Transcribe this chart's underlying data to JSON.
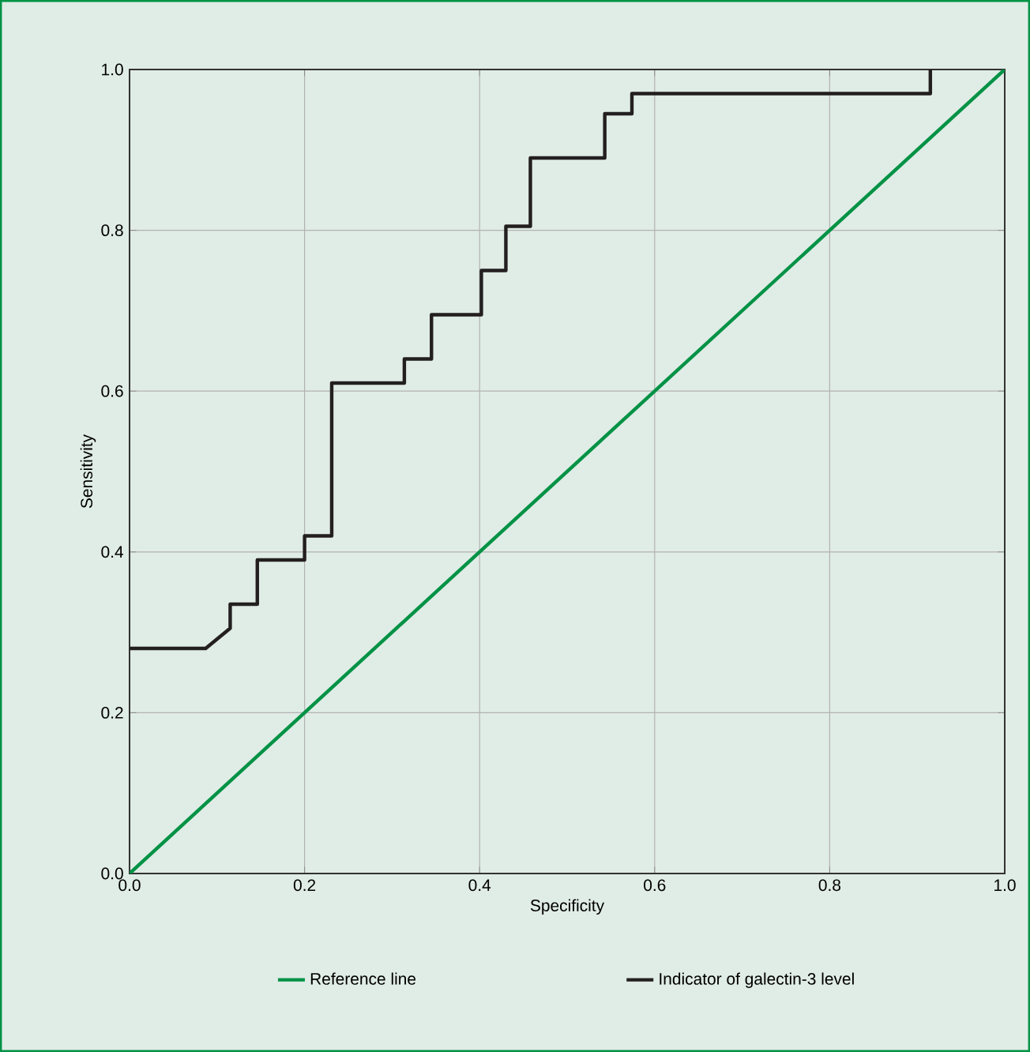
{
  "chart_data": {
    "type": "line",
    "xlabel": "Specificity",
    "ylabel": "Sensitivity",
    "xlim": [
      0,
      1
    ],
    "ylim": [
      0,
      1
    ],
    "xticks": [
      {
        "value": 0,
        "label": "0.0"
      },
      {
        "value": 0.2,
        "label": "0.2"
      },
      {
        "value": 0.4,
        "label": "0.4"
      },
      {
        "value": 0.6,
        "label": "0.6"
      },
      {
        "value": 0.8,
        "label": "0.8"
      },
      {
        "value": 1,
        "label": "1.0"
      }
    ],
    "yticks": [
      {
        "value": 0,
        "label": "0.0"
      },
      {
        "value": 0.2,
        "label": "0.2"
      },
      {
        "value": 0.4,
        "label": "0.4"
      },
      {
        "value": 0.6,
        "label": "0.6"
      },
      {
        "value": 0.8,
        "label": "0.8"
      },
      {
        "value": 1,
        "label": "1.0"
      }
    ],
    "grid": true,
    "legend": "bottom",
    "series": [
      {
        "name": "Reference line",
        "color": "#009245",
        "x": [
          0,
          1
        ],
        "values": [
          0,
          1
        ]
      },
      {
        "name": "Indicator of galectin-3 level",
        "color": "#231f20",
        "x": [
          0,
          0.087,
          0.115,
          0.115,
          0.146,
          0.146,
          0.2,
          0.2,
          0.231,
          0.231,
          0.314,
          0.314,
          0.345,
          0.345,
          0.402,
          0.402,
          0.43,
          0.43,
          0.458,
          0.458,
          0.543,
          0.543,
          0.574,
          0.574,
          0.915,
          0.915
        ],
        "values": [
          0.28,
          0.28,
          0.305,
          0.335,
          0.335,
          0.39,
          0.39,
          0.42,
          0.42,
          0.61,
          0.61,
          0.64,
          0.64,
          0.695,
          0.695,
          0.75,
          0.75,
          0.805,
          0.805,
          0.89,
          0.89,
          0.945,
          0.945,
          0.97,
          0.97,
          1.0
        ]
      }
    ]
  }
}
